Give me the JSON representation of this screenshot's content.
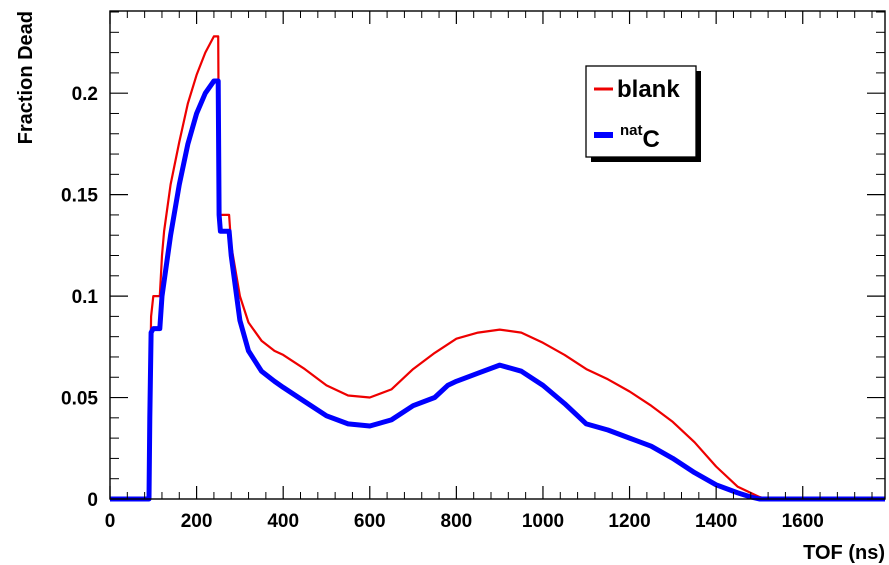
{
  "chart_data": {
    "type": "line",
    "xlabel": "TOF (ns)",
    "ylabel": "Fraction Dead",
    "xlim": [
      0,
      1790
    ],
    "ylim": [
      0,
      0.2405
    ],
    "x_ticks": [
      0,
      200,
      400,
      600,
      800,
      1000,
      1200,
      1400,
      1600
    ],
    "y_ticks": [
      0,
      0.05,
      0.1,
      0.15,
      0.2
    ],
    "x_tick_labels": [
      "0",
      "200",
      "400",
      "600",
      "800",
      "1000",
      "1200",
      "1400",
      "1600"
    ],
    "y_tick_labels": [
      "0",
      "0.05",
      "0.1",
      "0.15",
      "0.2"
    ],
    "legend_position": "top-right",
    "series": [
      {
        "name": "blank",
        "legend_label": "blank",
        "color": "#ee0000",
        "x": [
          0,
          90,
          92,
          95,
          100,
          115,
          120,
          125,
          140,
          160,
          180,
          200,
          220,
          240,
          245,
          250,
          252,
          255,
          260,
          265,
          268,
          275,
          280,
          300,
          320,
          350,
          380,
          400,
          450,
          500,
          550,
          600,
          650,
          700,
          750,
          800,
          850,
          900,
          950,
          1000,
          1050,
          1100,
          1150,
          1200,
          1250,
          1300,
          1350,
          1400,
          1450,
          1500,
          1520,
          1600,
          1790
        ],
        "y": [
          0,
          0,
          0.05,
          0.09,
          0.1,
          0.1,
          0.12,
          0.132,
          0.155,
          0.176,
          0.195,
          0.209,
          0.22,
          0.228,
          0.228,
          0.228,
          0.15,
          0.14,
          0.14,
          0.14,
          0.14,
          0.14,
          0.125,
          0.1,
          0.087,
          0.078,
          0.073,
          0.071,
          0.064,
          0.056,
          0.051,
          0.05,
          0.054,
          0.064,
          0.072,
          0.079,
          0.082,
          0.0835,
          0.082,
          0.077,
          0.071,
          0.064,
          0.059,
          0.053,
          0.046,
          0.038,
          0.028,
          0.016,
          0.006,
          0.001,
          0,
          0,
          0
        ]
      },
      {
        "name": "natC",
        "legend_label": "C",
        "legend_superscript": "nat",
        "color": "#0000ff",
        "x": [
          0,
          90,
          92,
          95,
          100,
          115,
          120,
          140,
          160,
          180,
          200,
          220,
          240,
          245,
          250,
          252,
          255,
          260,
          268,
          275,
          280,
          300,
          320,
          350,
          380,
          400,
          450,
          500,
          550,
          600,
          650,
          700,
          750,
          780,
          800,
          850,
          900,
          950,
          1000,
          1050,
          1100,
          1150,
          1200,
          1250,
          1300,
          1350,
          1400,
          1450,
          1480,
          1500,
          1600,
          1790
        ],
        "y": [
          0,
          0,
          0.04,
          0.082,
          0.084,
          0.084,
          0.1,
          0.13,
          0.155,
          0.175,
          0.19,
          0.2,
          0.206,
          0.206,
          0.206,
          0.14,
          0.132,
          0.132,
          0.132,
          0.132,
          0.12,
          0.088,
          0.073,
          0.063,
          0.058,
          0.055,
          0.048,
          0.041,
          0.037,
          0.036,
          0.039,
          0.046,
          0.05,
          0.056,
          0.058,
          0.062,
          0.066,
          0.063,
          0.056,
          0.047,
          0.037,
          0.034,
          0.03,
          0.026,
          0.02,
          0.013,
          0.007,
          0.003,
          0.001,
          0,
          0,
          0
        ]
      }
    ]
  }
}
